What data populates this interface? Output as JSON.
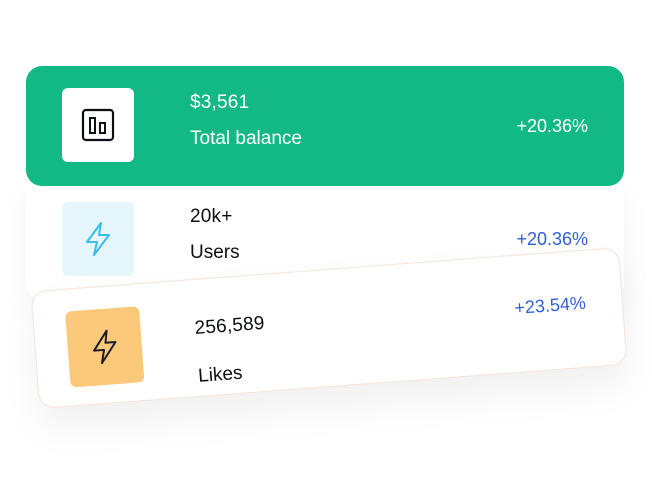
{
  "cards": [
    {
      "value": "$3,561",
      "label": "Total balance",
      "change": "+20.36%",
      "icon": "bar-chart-icon",
      "background": "#13b985"
    },
    {
      "value": "20k+",
      "label": "Users",
      "change": "+20.36%",
      "icon": "lightning-icon",
      "background": "#ffffff"
    },
    {
      "value": "256,589",
      "label": "Likes",
      "change": "+23.54%",
      "icon": "lightning-icon",
      "background": "#ffffff"
    }
  ],
  "colors": {
    "accent_green": "#13b985",
    "change_blue": "#2f5fd6",
    "users_icon_bg": "#e5f6fd",
    "users_icon_stroke": "#3bbcec",
    "likes_icon_bg": "#fcc97a"
  }
}
